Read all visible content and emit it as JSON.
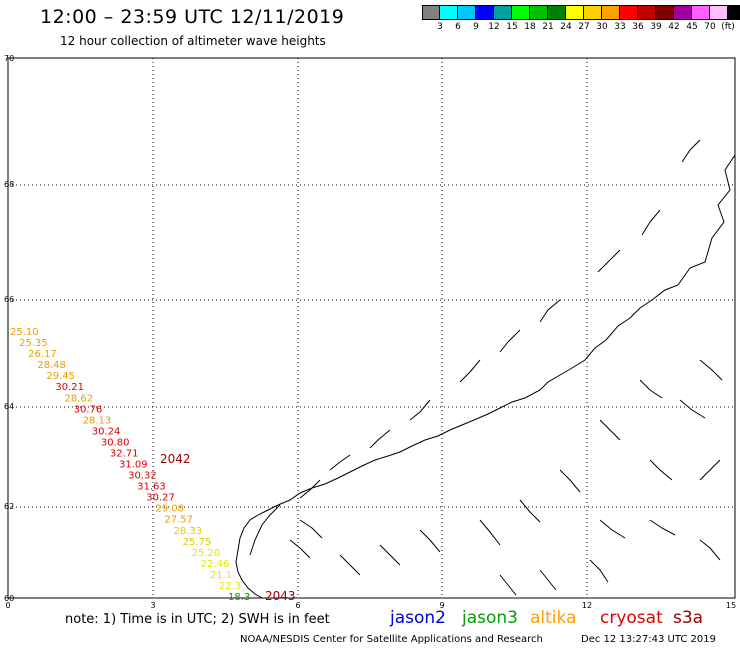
{
  "header": {
    "title": "12:00 – 23:59 UTC 12/11/2019",
    "subtitle": "12 hour collection of altimeter wave heights"
  },
  "legend": {
    "colors": [
      "#808080",
      "#00ffff",
      "#00c8ff",
      "#0000ff",
      "#00a0a0",
      "#00ff00",
      "#00c000",
      "#008000",
      "#ffff00",
      "#ffd000",
      "#ffa000",
      "#ff0000",
      "#c00000",
      "#800000",
      "#a000a0",
      "#ff60ff",
      "#ffc0ff",
      "#000000"
    ],
    "labels": [
      "3",
      "6",
      "9",
      "12",
      "15",
      "18",
      "21",
      "24",
      "27",
      "30",
      "33",
      "36",
      "39",
      "42",
      "45",
      "70",
      "(ft)"
    ]
  },
  "map": {
    "x_ticks": [
      "0",
      "3",
      "6",
      "9",
      "12",
      "15"
    ],
    "y_ticks": [
      "70",
      "68",
      "66",
      "64",
      "62",
      "60"
    ],
    "track_values": [
      {
        "v": "25.10",
        "c": "#e8a000"
      },
      {
        "v": "25.35",
        "c": "#e8a000"
      },
      {
        "v": "26.17",
        "c": "#e8a000"
      },
      {
        "v": "28.48",
        "c": "#e8a000"
      },
      {
        "v": "29.45",
        "c": "#e8a000"
      },
      {
        "v": "30.21",
        "c": "#e00000"
      },
      {
        "v": "28.62",
        "c": "#e8a000"
      },
      {
        "v": "30.76",
        "c": "#e00000"
      },
      {
        "v": "28.13",
        "c": "#e8a000"
      },
      {
        "v": "30.24",
        "c": "#e00000"
      },
      {
        "v": "30.80",
        "c": "#e00000"
      },
      {
        "v": "32.71",
        "c": "#e00000"
      },
      {
        "v": "31.09",
        "c": "#e00000"
      },
      {
        "v": "30.32",
        "c": "#e00000"
      },
      {
        "v": "31.63",
        "c": "#e00000"
      },
      {
        "v": "30.27",
        "c": "#e00000"
      },
      {
        "v": "29.08",
        "c": "#e8a000"
      },
      {
        "v": "27.57",
        "c": "#e8a000"
      },
      {
        "v": "28.33",
        "c": "#e8c800"
      },
      {
        "v": "25.75",
        "c": "#e8c800"
      },
      {
        "v": "25.20",
        "c": "#e8e800"
      },
      {
        "v": "22.46",
        "c": "#e8e800"
      },
      {
        "v": "21.1",
        "c": "#e8e800"
      },
      {
        "v": "22.3",
        "c": "#e8e800"
      },
      {
        "v": "18.3",
        "c": "#00a000"
      }
    ],
    "time_labels": [
      {
        "v": "2042",
        "c": "#a00000"
      },
      {
        "v": "2043",
        "c": "#a00000"
      }
    ]
  },
  "footer": {
    "note": "note: 1) Time is in UTC; 2) SWH is in feet",
    "satellites": [
      {
        "name": "jason2",
        "color": "#0000e0"
      },
      {
        "name": "jason3",
        "color": "#00a000"
      },
      {
        "name": "altika",
        "color": "#ffa000"
      },
      {
        "name": "cryosat",
        "color": "#e00000"
      },
      {
        "name": "s3a",
        "color": "#a00000"
      }
    ],
    "credit": "NOAA/NESDIS Center for Satellite Applications and Research",
    "timestamp": "Dec 12 13:27:43 UTC 2019"
  }
}
